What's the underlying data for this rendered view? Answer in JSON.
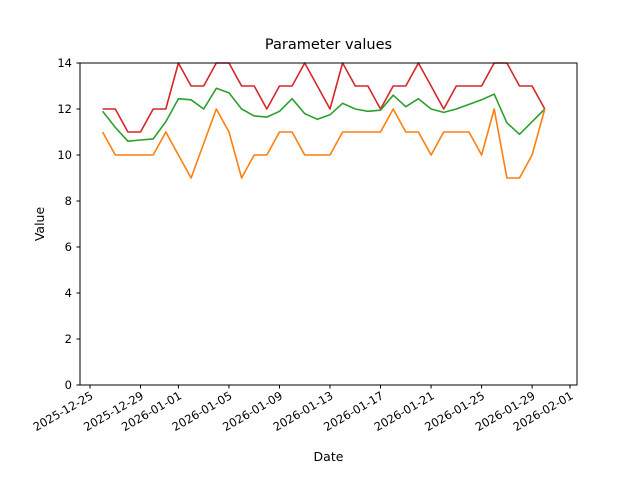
{
  "chart_data": {
    "type": "line",
    "title": "Parameter values",
    "xlabel": "Date",
    "ylabel": "Value",
    "ylim": [
      0,
      14
    ],
    "grid": false,
    "legend": "none",
    "x_tick_labels": [
      "2025-12-25",
      "2025-12-29",
      "2026-01-01",
      "2026-01-05",
      "2026-01-09",
      "2026-01-13",
      "2026-01-17",
      "2026-01-21",
      "2026-01-25",
      "2026-01-29",
      "2026-02-01"
    ],
    "y_tick_labels": [
      "0",
      "2",
      "4",
      "6",
      "8",
      "10",
      "12",
      "14"
    ],
    "x": [
      "2025-12-26",
      "2025-12-27",
      "2025-12-28",
      "2025-12-29",
      "2025-12-30",
      "2025-12-31",
      "2026-01-01",
      "2026-01-02",
      "2026-01-03",
      "2026-01-04",
      "2026-01-05",
      "2026-01-06",
      "2026-01-07",
      "2026-01-08",
      "2026-01-09",
      "2026-01-10",
      "2026-01-11",
      "2026-01-12",
      "2026-01-13",
      "2026-01-14",
      "2026-01-15",
      "2026-01-16",
      "2026-01-17",
      "2026-01-18",
      "2026-01-19",
      "2026-01-20",
      "2026-01-21",
      "2026-01-22",
      "2026-01-23",
      "2026-01-24",
      "2026-01-25",
      "2026-01-26",
      "2026-01-27",
      "2026-01-28",
      "2026-01-29",
      "2026-01-30"
    ],
    "series": [
      {
        "id": "red",
        "color": "#d62728",
        "values": [
          12,
          12,
          11,
          11,
          12,
          12,
          14,
          13,
          13,
          14,
          14,
          13,
          13,
          12,
          13,
          13,
          14,
          13,
          12,
          14,
          13,
          13,
          12,
          13,
          13,
          14,
          13,
          12,
          13,
          13,
          13,
          14,
          14,
          13,
          13,
          12
        ]
      },
      {
        "id": "green",
        "color": "#2ca02c",
        "values": [
          11.9,
          11.2,
          10.6,
          10.65,
          10.7,
          11.45,
          12.45,
          12.4,
          12.0,
          12.9,
          12.7,
          12.0,
          11.7,
          11.65,
          11.9,
          12.45,
          11.8,
          11.55,
          11.75,
          12.25,
          12.0,
          11.9,
          11.95,
          12.6,
          12.1,
          12.45,
          12.0,
          11.85,
          12.0,
          12.2,
          12.4,
          12.65,
          11.4,
          10.9,
          11.45,
          12.0
        ]
      },
      {
        "id": "orange",
        "color": "#ff7f0e",
        "values": [
          11,
          10,
          10,
          10,
          10,
          11,
          10,
          9,
          10.5,
          12,
          11,
          9,
          10,
          10,
          11,
          11,
          10,
          10,
          10,
          11,
          11,
          11,
          11,
          12,
          11,
          11,
          10,
          11,
          11,
          11,
          10,
          12,
          9,
          9,
          10,
          12
        ]
      }
    ],
    "axis_color": "#000000",
    "background_color": "#ffffff"
  }
}
